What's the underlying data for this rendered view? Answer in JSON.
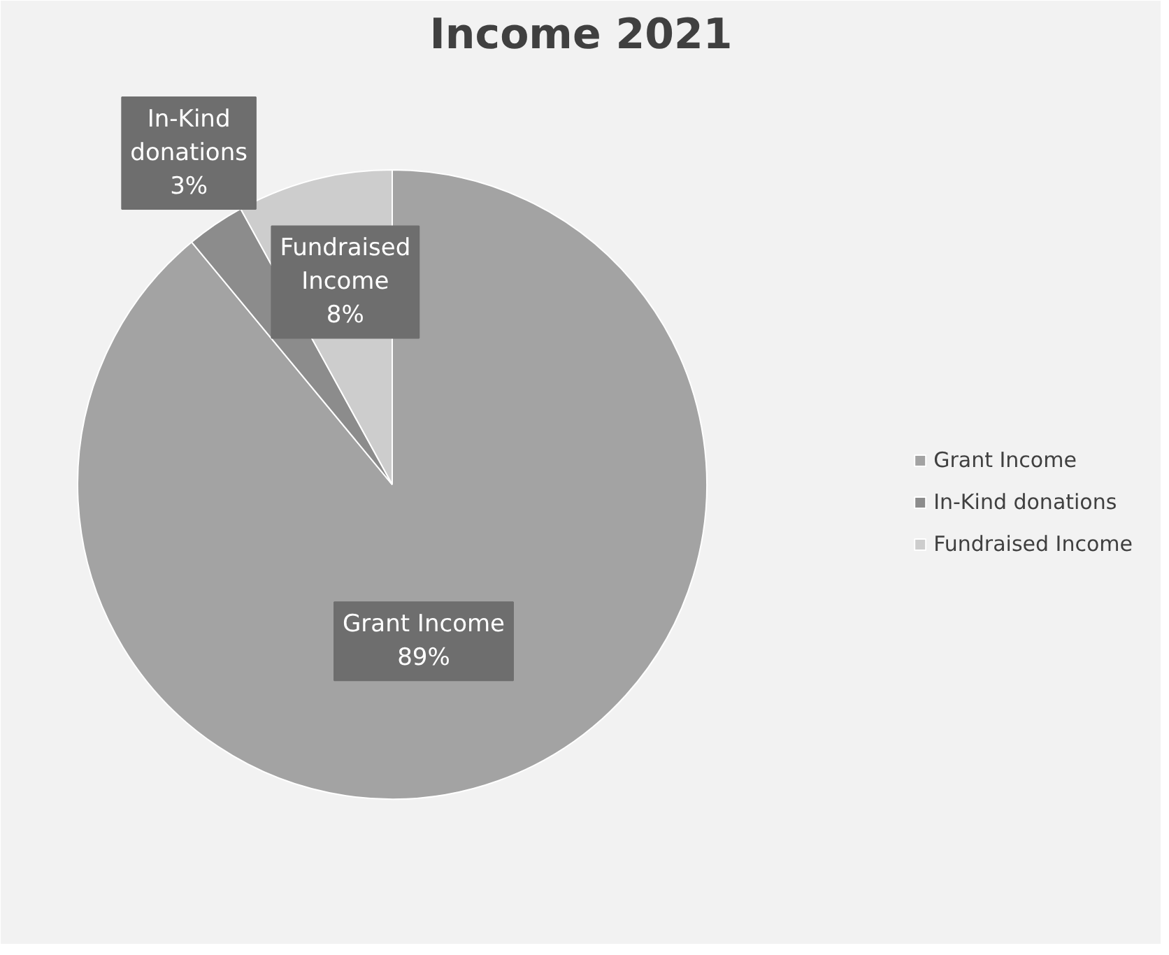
{
  "chart_data": {
    "type": "pie",
    "title": "Income 2021",
    "categories": [
      "Grant Income",
      "In-Kind donations",
      "Fundraised Income"
    ],
    "values": [
      89,
      3,
      8
    ],
    "colors": [
      "#a3a3a3",
      "#8c8c8c",
      "#cdcdcd"
    ],
    "value_labels": [
      "Grant Income\n89%",
      "In-Kind\ndonations\n3%",
      "Fundraised\nIncome\n8%"
    ],
    "legend": "right"
  }
}
